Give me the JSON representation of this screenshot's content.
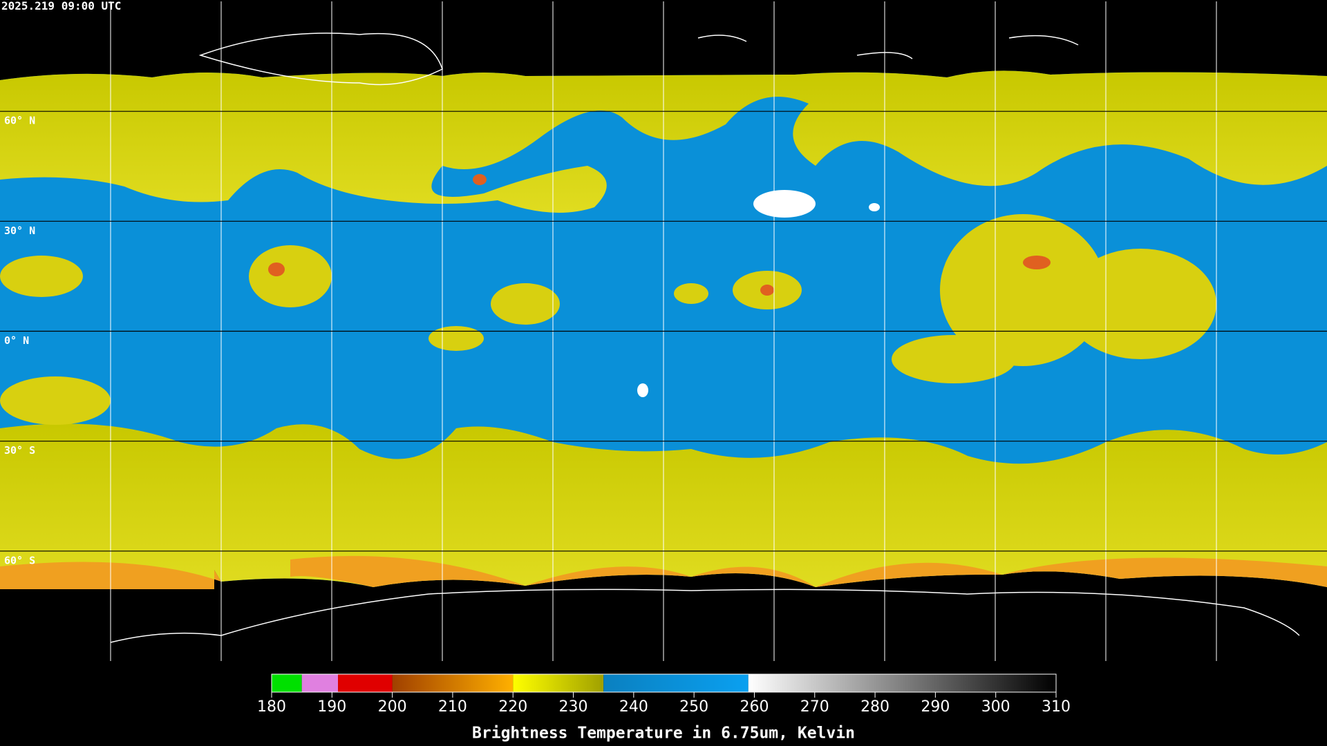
{
  "map": {
    "timestamp": "2025.219 09:00 UTC",
    "lat_lim": [
      -90,
      90
    ],
    "lat_lines": [
      {
        "value": 60,
        "label": "60° N"
      },
      {
        "value": 30,
        "label": "30° N"
      },
      {
        "value": 0,
        "label": "0° N"
      },
      {
        "value": -30,
        "label": "30° S"
      },
      {
        "value": -60,
        "label": "60° S"
      }
    ]
  },
  "colorbar": {
    "title": "Brightness Temperature in 6.75um, Kelvin",
    "lim": [
      180,
      310
    ],
    "ticks": [
      180,
      190,
      200,
      210,
      220,
      230,
      240,
      250,
      260,
      270,
      280,
      290,
      300,
      310
    ],
    "segments": [
      {
        "range": [
          180,
          185
        ],
        "colors": [
          "#00e000",
          "#00e000"
        ]
      },
      {
        "range": [
          185,
          191
        ],
        "colors": [
          "#e080e0",
          "#e080e0"
        ]
      },
      {
        "range": [
          191,
          200
        ],
        "colors": [
          "#e00000",
          "#e00000"
        ]
      },
      {
        "range": [
          200,
          220
        ],
        "colors": [
          "#a04000",
          "#ffb000"
        ]
      },
      {
        "range": [
          220,
          235
        ],
        "colors": [
          "#ffff00",
          "#a0a000"
        ]
      },
      {
        "range": [
          235,
          259
        ],
        "colors": [
          "#0a80c0",
          "#0aa0f0"
        ]
      },
      {
        "range": [
          259,
          310
        ],
        "colors": [
          "#ffffff",
          "#000000"
        ]
      }
    ]
  }
}
